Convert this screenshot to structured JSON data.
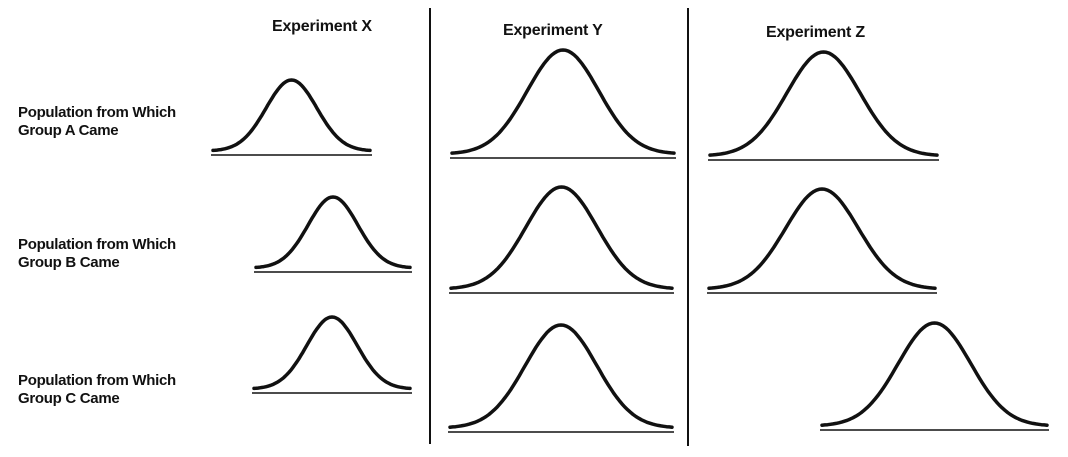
{
  "columns": [
    "Experiment X",
    "Experiment Y",
    "Experiment Z"
  ],
  "rows": [
    {
      "label_line1": "Population from Which",
      "label_line2": "Group A Came"
    },
    {
      "label_line1": "Population from Which",
      "label_line2": "Group B Came"
    },
    {
      "label_line1": "Population from Which",
      "label_line2": "Group C Came"
    }
  ],
  "colors": {
    "ink": "#111111",
    "background": "#ffffff"
  }
}
